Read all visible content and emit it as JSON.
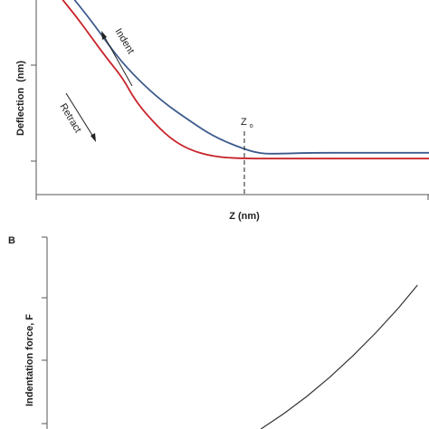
{
  "colors": {
    "indent": "#3c5a8c",
    "retract": "#c8242b",
    "force": "#333333",
    "axis": "#555555"
  },
  "panelA": {
    "ylabel_main": "Deflection",
    "ylabel_unit": "(nm)",
    "xlabel": "Z (nm)",
    "annotation_indent": "Indent",
    "annotation_retract": "Retract",
    "z0_label": "Z",
    "z0_sub": "o"
  },
  "panelB": {
    "panel_label": "B",
    "ylabel": "Indentation force, F"
  },
  "chart_data": [
    {
      "type": "line",
      "title": "",
      "xlabel": "Z (nm)",
      "ylabel": "Deflection (nm)",
      "xlim": [
        0,
        10
      ],
      "ylim": [
        0,
        10
      ],
      "grid": false,
      "series": [
        {
          "name": "Indent",
          "x": [
            0.9,
            1.3,
            1.7,
            2.1,
            2.6,
            3.2,
            3.9,
            4.5,
            5.2,
            5.7,
            6.2,
            7.0,
            8.0,
            9.0,
            10.0
          ],
          "y": [
            10.2,
            9.2,
            8.1,
            7.0,
            5.9,
            4.8,
            3.8,
            3.0,
            2.4,
            2.1,
            2.1,
            2.15,
            2.15,
            2.15,
            2.15
          ]
        },
        {
          "name": "Retract",
          "x": [
            0.6,
            1.0,
            1.4,
            1.8,
            2.2,
            2.5,
            2.9,
            3.4,
            3.9,
            4.5,
            5.2,
            6.0,
            7.0,
            8.0,
            9.0,
            10.0
          ],
          "y": [
            10.2,
            9.2,
            8.1,
            7.0,
            6.0,
            4.9,
            3.9,
            2.9,
            2.3,
            1.95,
            1.85,
            1.85,
            1.85,
            1.85,
            1.85,
            1.85
          ]
        }
      ],
      "z0_x": 6.5
    },
    {
      "type": "line",
      "title": "",
      "xlabel": "",
      "ylabel": "Indentation force, F",
      "xlim": [
        0,
        10
      ],
      "ylim": [
        0,
        10
      ],
      "grid": false,
      "series": [
        {
          "name": "",
          "x": [
            5.6,
            6.2,
            6.8,
            7.4,
            8.0,
            8.6,
            9.2,
            9.7
          ],
          "y": [
            0.0,
            0.8,
            1.7,
            2.7,
            3.8,
            5.0,
            6.3,
            7.5
          ]
        }
      ]
    }
  ]
}
